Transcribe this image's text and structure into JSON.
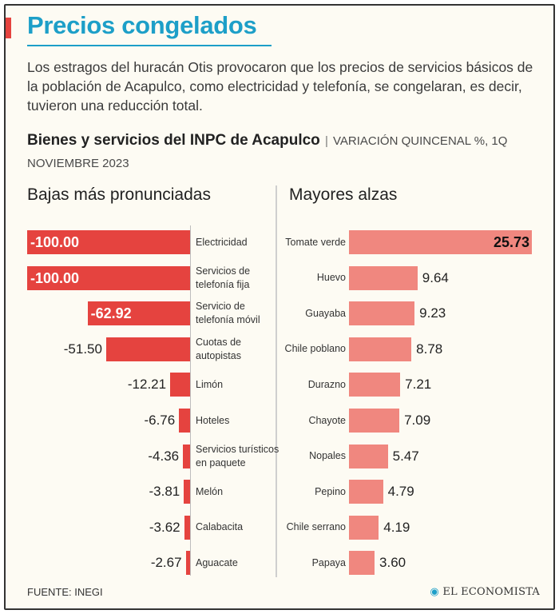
{
  "title": "Precios congelados",
  "intro": "Los estragos del huracán Otis provocaron que los precios de servicios básicos de la población de Acapulco, como electricidad y telefonía, se congelaran, es decir, tuvieron una reducción total.",
  "subtitle_main": "Bienes y servicios del INPC de Acapulco",
  "subtitle_sep": "|",
  "subtitle_detail": "VARIACIÓN QUINCENAL %, 1Q NOVIEMBRE 2023",
  "source": "FUENTE: INEGI",
  "brand": "EL ECONOMISTA",
  "brand_icon": "globe-dot-icon",
  "colors": {
    "title": "#1d9fc8",
    "decrease": "#e5433f",
    "increase": "#f0877f"
  },
  "chart_data": [
    {
      "type": "bar",
      "orientation": "horizontal",
      "title": "Bajas más pronunciadas",
      "categories": [
        [
          "Electricidad"
        ],
        [
          "Servicios de",
          "telefonía fija"
        ],
        [
          "Servicio de",
          "telefonía móvil"
        ],
        [
          "Cuotas de",
          "autopistas"
        ],
        [
          "Limón"
        ],
        [
          "Hoteles"
        ],
        [
          "Servicios turísticos",
          "en paquete"
        ],
        [
          "Melón"
        ],
        [
          "Calabacita"
        ],
        [
          "Aguacate"
        ]
      ],
      "values": [
        -100.0,
        -100.0,
        -62.92,
        -51.5,
        -12.21,
        -6.76,
        -4.36,
        -3.81,
        -3.62,
        -2.67
      ],
      "labels": [
        "-100.00",
        "-100.00",
        "-62.92",
        "-51.50",
        "-12.21",
        "-6.76",
        "-4.36",
        "-3.81",
        "-3.62",
        "-2.67"
      ],
      "xlim": [
        -100,
        0
      ]
    },
    {
      "type": "bar",
      "orientation": "horizontal",
      "title": "Mayores alzas",
      "categories": [
        [
          "Tomate verde"
        ],
        [
          "Huevo"
        ],
        [
          "Guayaba"
        ],
        [
          "Chile poblano"
        ],
        [
          "Durazno"
        ],
        [
          "Chayote"
        ],
        [
          "Nopales"
        ],
        [
          "Pepino"
        ],
        [
          "Chile serrano"
        ],
        [
          "Papaya"
        ]
      ],
      "values": [
        25.73,
        9.64,
        9.23,
        8.78,
        7.21,
        7.09,
        5.47,
        4.79,
        4.19,
        3.6
      ],
      "labels": [
        "25.73",
        "9.64",
        "9.23",
        "8.78",
        "7.21",
        "7.09",
        "5.47",
        "4.79",
        "4.19",
        "3.60"
      ],
      "xlim": [
        0,
        25.73
      ]
    }
  ]
}
